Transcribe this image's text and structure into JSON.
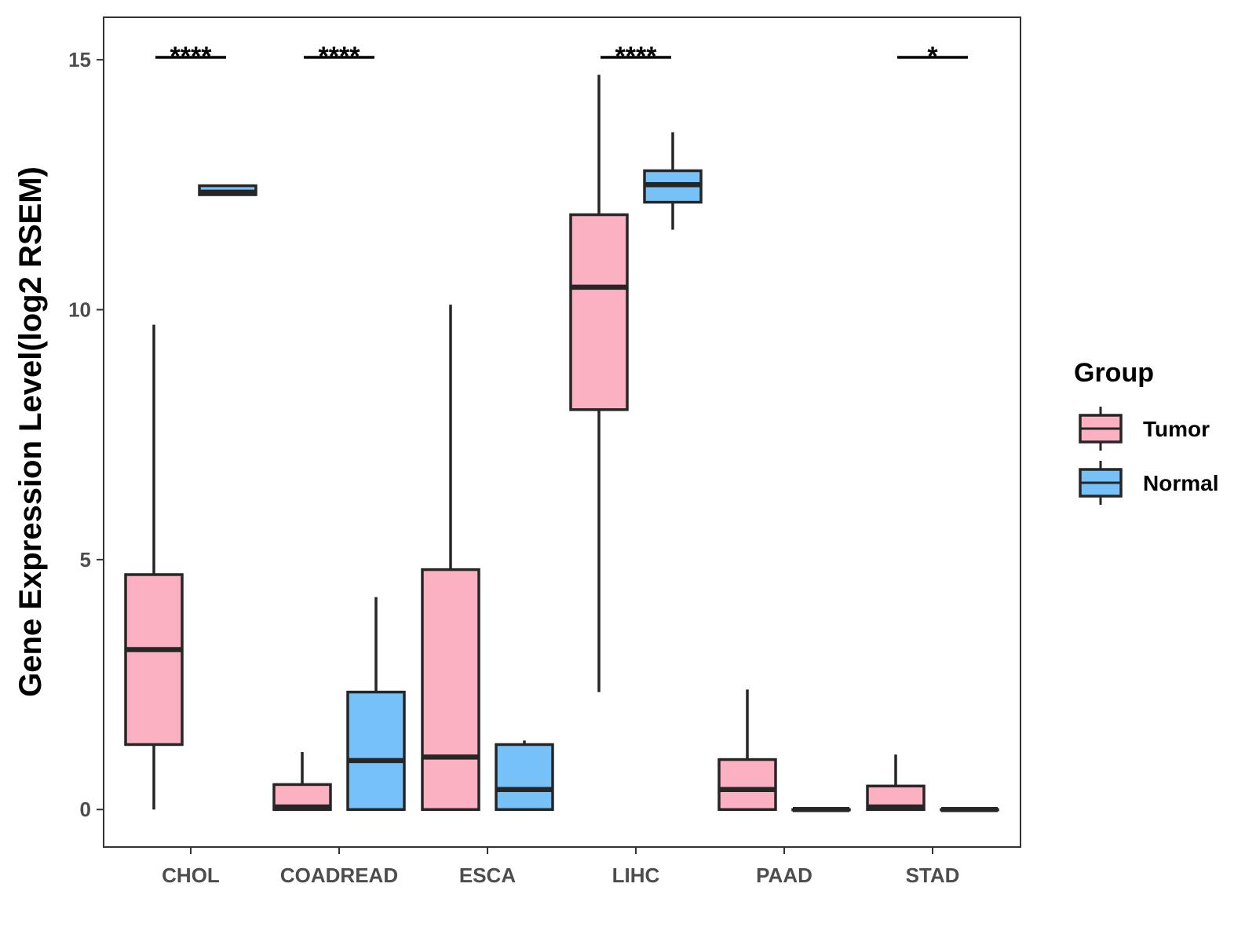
{
  "chart_data": {
    "type": "box",
    "title": "",
    "xlabel": "",
    "ylabel": "Gene Expression Level(log2 RSEM)",
    "ylim": [
      -0.75,
      15.85
    ],
    "yticks": [
      0,
      5,
      10,
      15
    ],
    "categories": [
      "CHOL",
      "COADREAD",
      "ESCA",
      "LIHC",
      "PAAD",
      "STAD"
    ],
    "legend": {
      "title": "Group",
      "position": "right"
    },
    "series": [
      {
        "name": "Tumor",
        "color": "#fcb1c3",
        "boxes": [
          {
            "category": "CHOL",
            "min": 0.0,
            "q1": 1.3,
            "median": 3.2,
            "q3": 4.7,
            "max": 9.7
          },
          {
            "category": "COADREAD",
            "min": 0.0,
            "q1": 0.0,
            "median": 0.05,
            "q3": 0.5,
            "max": 1.15
          },
          {
            "category": "ESCA",
            "min": 0.0,
            "q1": 0.0,
            "median": 1.05,
            "q3": 4.8,
            "max": 10.1
          },
          {
            "category": "LIHC",
            "min": 2.35,
            "q1": 8.0,
            "median": 10.45,
            "q3": 11.9,
            "max": 14.7
          },
          {
            "category": "PAAD",
            "min": 0.0,
            "q1": 0.0,
            "median": 0.4,
            "q3": 1.0,
            "max": 2.4
          },
          {
            "category": "STAD",
            "min": 0.0,
            "q1": 0.0,
            "median": 0.05,
            "q3": 0.47,
            "max": 1.1
          }
        ]
      },
      {
        "name": "Normal",
        "color": "#76c2f8",
        "boxes": [
          {
            "category": "CHOL",
            "min": 12.28,
            "q1": 12.3,
            "median": 12.35,
            "q3": 12.48,
            "max": 12.48
          },
          {
            "category": "COADREAD",
            "min": 0.0,
            "q1": 0.0,
            "median": 0.98,
            "q3": 2.35,
            "max": 4.25
          },
          {
            "category": "ESCA",
            "min": 0.0,
            "q1": 0.0,
            "median": 0.4,
            "q3": 1.3,
            "max": 1.38
          },
          {
            "category": "LIHC",
            "min": 11.6,
            "q1": 12.15,
            "median": 12.5,
            "q3": 12.78,
            "max": 13.55
          },
          {
            "category": "PAAD",
            "min": 0.0,
            "q1": 0.0,
            "median": 0.0,
            "q3": 0.0,
            "max": 0.0
          },
          {
            "category": "STAD",
            "min": 0.0,
            "q1": 0.0,
            "median": 0.0,
            "q3": 0.0,
            "max": 0.0
          }
        ]
      }
    ],
    "significance": [
      {
        "category": "CHOL",
        "label": "****",
        "y": 15.05
      },
      {
        "category": "COADREAD",
        "label": "****",
        "y": 15.05
      },
      {
        "category": "LIHC",
        "label": "****",
        "y": 15.05
      },
      {
        "category": "STAD",
        "label": "*",
        "y": 15.05
      }
    ]
  },
  "colors": {
    "tumor": "#fcb1c3",
    "normal": "#76c2f8",
    "outline": "#262626",
    "axis": "#333333",
    "tick_text": "#4d4d4d"
  }
}
